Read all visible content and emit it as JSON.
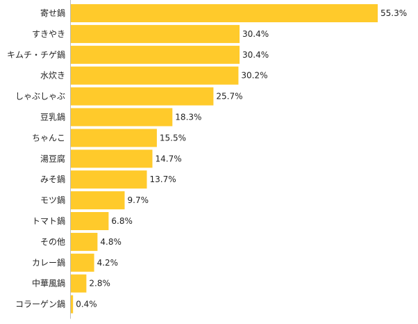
{
  "chart_data": {
    "type": "bar",
    "orientation": "horizontal",
    "title": "",
    "xlabel": "",
    "ylabel": "",
    "unit": "%",
    "categories": [
      "寄せ鍋",
      "すきやき",
      "キムチ・チゲ鍋",
      "水炊き",
      "しゃぶしゃぶ",
      "豆乳鍋",
      "ちゃんこ",
      "湯豆腐",
      "みそ鍋",
      "モツ鍋",
      "トマト鍋",
      "その他",
      "カレー鍋",
      "中華風鍋",
      "コラーゲン鍋"
    ],
    "values": [
      55.3,
      30.4,
      30.4,
      30.2,
      25.7,
      18.3,
      15.5,
      14.7,
      13.7,
      9.7,
      6.8,
      4.8,
      4.2,
      2.8,
      0.4
    ],
    "value_labels": [
      "55.3%",
      "30.4%",
      "30.4%",
      "30.2%",
      "25.7%",
      "18.3%",
      "15.5%",
      "14.7%",
      "13.7%",
      "9.7%",
      "6.8%",
      "4.8%",
      "4.2%",
      "2.8%",
      "0.4%"
    ],
    "xlim": [
      0,
      55.3
    ],
    "grid": false,
    "legend": "none",
    "bar_color": "#FFCA2B"
  }
}
